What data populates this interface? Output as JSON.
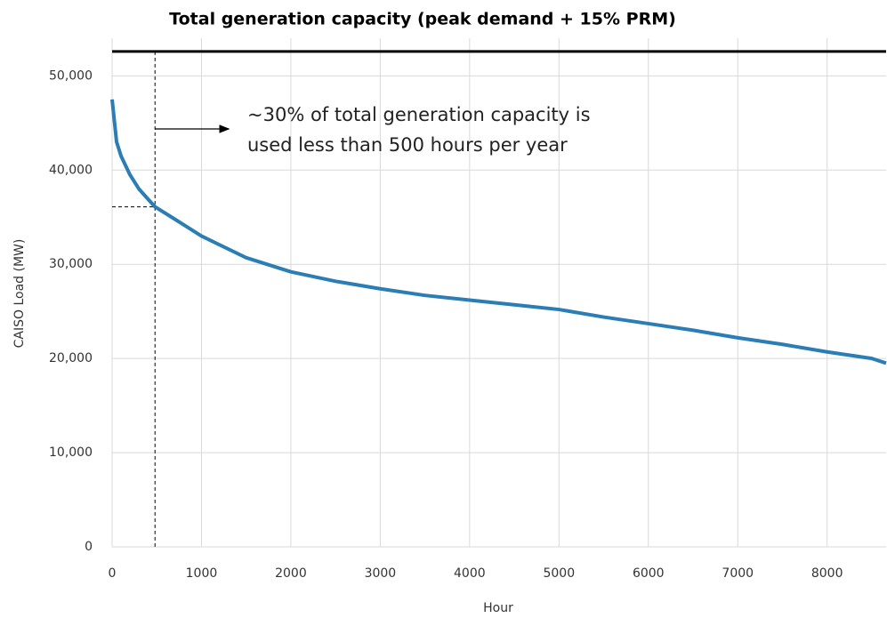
{
  "chart_data": {
    "type": "line",
    "title": "Total generation capacity (peak demand + 15% PRM)",
    "xlabel": "Hour",
    "ylabel": "CAISO Load (MW)",
    "annotation": "~30% of total generation capacity is used less than 500 hours per year",
    "capacity_line": 52600,
    "marker": {
      "x": 480,
      "y": 36100
    },
    "color": "#2a7db5",
    "grid": true,
    "x": [
      0,
      50,
      100,
      200,
      300,
      480,
      700,
      1000,
      1500,
      2000,
      2500,
      3000,
      3500,
      4000,
      4500,
      5000,
      5500,
      6000,
      6500,
      7000,
      7500,
      8000,
      8500,
      8660
    ],
    "values": [
      47500,
      43000,
      41500,
      39500,
      38000,
      36100,
      34800,
      33000,
      30700,
      29200,
      28200,
      27400,
      26700,
      26200,
      25700,
      25200,
      24400,
      23700,
      23000,
      22200,
      21500,
      20700,
      20000,
      19500
    ],
    "xlim": [
      0,
      8660
    ],
    "ylim": [
      0,
      54000
    ],
    "xticks": [
      0,
      1000,
      2000,
      3000,
      4000,
      5000,
      6000,
      7000,
      8000
    ],
    "yticks": [
      0,
      {
        "value": 10000,
        "label": "10,000"
      },
      {
        "value": 20000,
        "label": "20,000"
      },
      {
        "value": 30000,
        "label": "30,000"
      },
      {
        "value": 40000,
        "label": "40,000"
      },
      {
        "value": 50000,
        "label": "50,000"
      }
    ]
  }
}
